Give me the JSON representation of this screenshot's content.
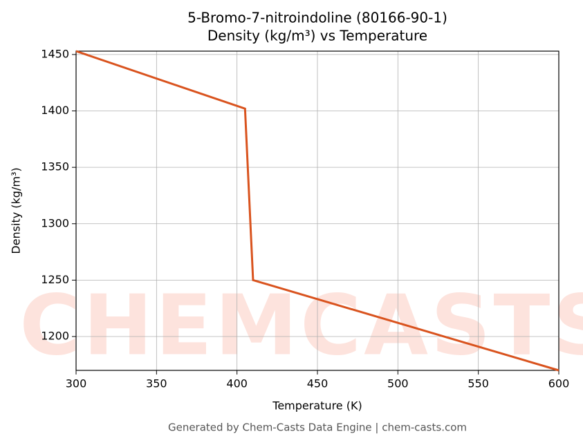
{
  "chart_data": {
    "type": "line",
    "title": "5-Bromo-7-nitroindoline (80166-90-1)",
    "subtitle": "Density (kg/m³) vs Temperature",
    "x_label": "Temperature (K)",
    "y_label": "Density (kg/m³)",
    "footer": "Generated by Chem-Casts Data Engine | chem-casts.com",
    "watermark": "CHEMCASTS",
    "x": [
      300,
      405,
      410,
      600
    ],
    "series": [
      {
        "name": "Density",
        "color": "#d9531e",
        "values": [
          1453,
          1402,
          1250,
          1170
        ]
      }
    ],
    "xlim": [
      300,
      600
    ],
    "xticks": [
      300,
      350,
      400,
      450,
      500,
      550,
      600
    ],
    "ylim": [
      1170,
      1453
    ],
    "yticks": [
      1200,
      1250,
      1300,
      1350,
      1400,
      1450
    ],
    "grid": true
  }
}
